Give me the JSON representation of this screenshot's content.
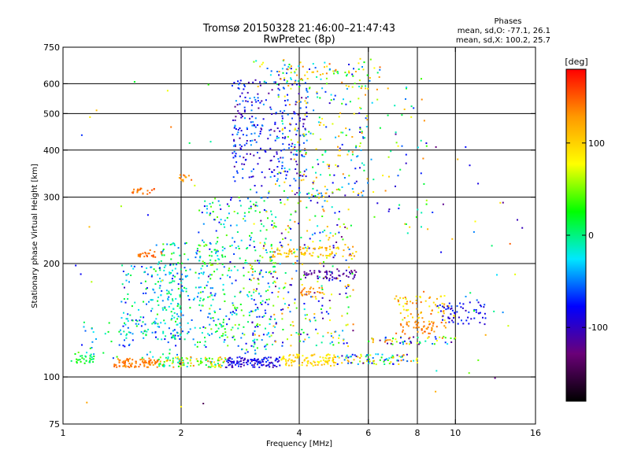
{
  "chart_data": {
    "type": "scatter",
    "title_line1": "Tromsø 20150328 21:46:00–21:47:43",
    "title_line2": "RwPretec (8p)",
    "stats": {
      "heading": "Phases",
      "line_o": "mean, sd,O: -77.1, 26.1",
      "line_x": "mean, sd,X: 100.2, 25.7"
    },
    "xlabel": "Frequency [MHz]",
    "ylabel": "Stationary phase Virtual Height [km]",
    "x_scale": "log",
    "y_scale": "log",
    "xlim": [
      1,
      16
    ],
    "ylim": [
      75,
      750
    ],
    "x_ticks": [
      1,
      2,
      4,
      6,
      8,
      10,
      16
    ],
    "x_tick_labels": [
      "1",
      "2",
      "4",
      "6",
      "8",
      "10",
      "16"
    ],
    "y_ticks": [
      75,
      100,
      200,
      300,
      400,
      500,
      600,
      750
    ],
    "y_tick_labels": [
      "75",
      "100",
      "200",
      "300",
      "400",
      "500",
      "600",
      "750"
    ],
    "grid_x": [
      2,
      4,
      6,
      8,
      10
    ],
    "grid_y": [
      100,
      200,
      300,
      400,
      500,
      600
    ],
    "grid": true,
    "colorbar": {
      "label": "[deg]",
      "range": [
        -180,
        180
      ],
      "ticks": [
        100,
        0,
        -100
      ],
      "tick_labels": [
        "100",
        "0",
        "-100"
      ],
      "stops": [
        "#000000",
        "#6a0078",
        "#0000ff",
        "#00e8ff",
        "#00ff00",
        "#ffff00",
        "#ff9900",
        "#ff0000"
      ]
    },
    "clusters": [
      {
        "name": "E-layer trace low freq",
        "x": [
          1.05,
          1.2
        ],
        "y": [
          108,
          116
        ],
        "phase": [
          -10,
          40
        ],
        "n": 30
      },
      {
        "name": "E-layer trace orange",
        "x": [
          1.35,
          1.75
        ],
        "y": [
          106,
          112
        ],
        "phase": [
          125,
          150
        ],
        "n": 90
      },
      {
        "name": "E-layer trace mixed",
        "x": [
          1.75,
          2.6
        ],
        "y": [
          106,
          113
        ],
        "phase": [
          -40,
          140
        ],
        "n": 110
      },
      {
        "name": "E-layer trace blue",
        "x": [
          2.6,
          3.6
        ],
        "y": [
          106,
          113
        ],
        "phase": [
          -115,
          -60
        ],
        "n": 110
      },
      {
        "name": "E-layer trace yellow",
        "x": [
          3.6,
          5.0
        ],
        "y": [
          107,
          115
        ],
        "phase": [
          75,
          120
        ],
        "n": 100
      },
      {
        "name": "E-layer trace high",
        "x": [
          5.0,
          8.0
        ],
        "y": [
          108,
          115
        ],
        "phase": [
          -120,
          140
        ],
        "n": 90
      },
      {
        "name": "low diffuse band",
        "x": [
          1.1,
          2.0
        ],
        "y": [
          112,
          140
        ],
        "phase": [
          -80,
          40
        ],
        "n": 60
      },
      {
        "name": "cyan blob low",
        "x": [
          1.4,
          2.1
        ],
        "y": [
          125,
          200
        ],
        "phase": [
          -80,
          20
        ],
        "n": 180
      },
      {
        "name": "cyan blob mid",
        "x": [
          1.7,
          2.6
        ],
        "y": [
          120,
          230
        ],
        "phase": [
          -60,
          40
        ],
        "n": 160
      },
      {
        "name": "spread F middle",
        "x": [
          2.2,
          3.5
        ],
        "y": [
          115,
          300
        ],
        "phase": [
          -90,
          60
        ],
        "n": 300
      },
      {
        "name": "spread F mixed",
        "x": [
          3.0,
          5.5
        ],
        "y": [
          120,
          330
        ],
        "phase": [
          -130,
          140
        ],
        "n": 350
      },
      {
        "name": "upper F blue",
        "x": [
          2.7,
          4.2
        ],
        "y": [
          330,
          620
        ],
        "phase": [
          -120,
          -40
        ],
        "n": 280
      },
      {
        "name": "upper F mixed",
        "x": [
          3.5,
          6.0
        ],
        "y": [
          300,
          680
        ],
        "phase": [
          -100,
          140
        ],
        "n": 240
      },
      {
        "name": "top scatter",
        "x": [
          3.0,
          6.5
        ],
        "y": [
          580,
          700
        ],
        "phase": [
          -60,
          150
        ],
        "n": 70
      },
      {
        "name": "O-trace 210",
        "x": [
          1.55,
          1.8
        ],
        "y": [
          208,
          218
        ],
        "phase": [
          130,
          160
        ],
        "n": 25
      },
      {
        "name": "O-trace 310",
        "x": [
          1.5,
          1.72
        ],
        "y": [
          305,
          318
        ],
        "phase": [
          130,
          160
        ],
        "n": 20
      },
      {
        "name": "O-trace 335",
        "x": [
          1.95,
          2.15
        ],
        "y": [
          330,
          345
        ],
        "phase": [
          120,
          150
        ],
        "n": 12
      },
      {
        "name": "band 215",
        "x": [
          3.4,
          5.6
        ],
        "y": [
          208,
          222
        ],
        "phase": [
          80,
          140
        ],
        "n": 80
      },
      {
        "name": "band 185 blue",
        "x": [
          4.1,
          5.6
        ],
        "y": [
          182,
          192
        ],
        "phase": [
          -130,
          -100
        ],
        "n": 55
      },
      {
        "name": "band 170 orange",
        "x": [
          4.0,
          4.6
        ],
        "y": [
          163,
          173
        ],
        "phase": [
          120,
          150
        ],
        "n": 25
      },
      {
        "name": "right cluster 150",
        "x": [
          7.0,
          10.0
        ],
        "y": [
          140,
          165
        ],
        "phase": [
          60,
          150
        ],
        "n": 70
      },
      {
        "name": "right cluster 135",
        "x": [
          7.0,
          9.5
        ],
        "y": [
          130,
          140
        ],
        "phase": [
          120,
          150
        ],
        "n": 50
      },
      {
        "name": "right blue",
        "x": [
          9.0,
          12.0
        ],
        "y": [
          138,
          158
        ],
        "phase": [
          -110,
          -60
        ],
        "n": 60
      },
      {
        "name": "right band 125",
        "x": [
          6.0,
          10.0
        ],
        "y": [
          122,
          128
        ],
        "phase": [
          -130,
          150
        ],
        "n": 60
      },
      {
        "name": "upper right sparse",
        "x": [
          6.0,
          8.5
        ],
        "y": [
          240,
          620
        ],
        "phase": [
          -120,
          140
        ],
        "n": 60
      },
      {
        "name": "far right sparse",
        "x": [
          8.0,
          15.0
        ],
        "y": [
          90,
          420
        ],
        "phase": [
          -160,
          150
        ],
        "n": 35
      },
      {
        "name": "outliers",
        "x": [
          1.05,
          2.4
        ],
        "y": [
          80,
          620
        ],
        "phase": [
          -150,
          160
        ],
        "n": 25
      }
    ]
  }
}
